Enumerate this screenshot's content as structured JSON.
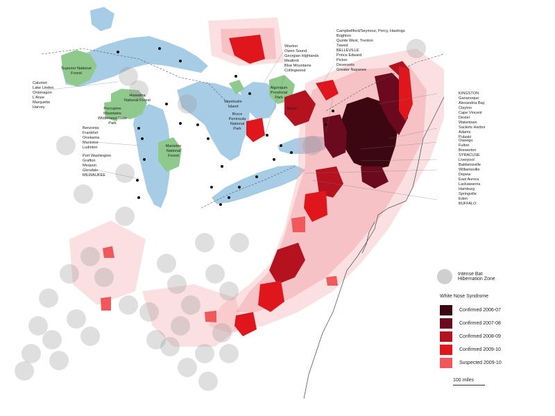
{
  "legend": {
    "hibernation_label_1": "Intense Bat",
    "hibernation_label_2": "Hibernation Zone",
    "wns_title": "White Nose Syndrome",
    "classes": [
      {
        "label": "Confirmed 2006-07",
        "color": "#3d0712"
      },
      {
        "label": "Confirmed 2007-08",
        "color": "#6b0a1e"
      },
      {
        "label": "Confirmed 2008-09",
        "color": "#b51220"
      },
      {
        "label": "Confirmed 2009-10",
        "color": "#e0161d"
      },
      {
        "label": "Suspected 2009-10",
        "color": "#f0585c"
      }
    ]
  },
  "scale_label": "100 miles",
  "places": {
    "west": [
      "Calumet",
      "Lake Linden",
      "Ontonagon",
      "L'Anse",
      "Marquette",
      "Harvey"
    ],
    "michigan_west": [
      "Benzonia",
      "Frankfort",
      "Onekama",
      "Manistee",
      "Ludinton"
    ],
    "wisconsin": [
      "Port Washington",
      "Grafton",
      "Mequon",
      "Glendale",
      "MILWAUKEE"
    ],
    "ontario": [
      "Wiarton",
      "Owen Sound",
      "Georgian Highlands",
      "Meaford",
      "Blue Mountains",
      "Collingwood"
    ],
    "ontario_east": [
      "Campbellford/Seymour, Percy, Hastings",
      "Brighton",
      "Quinte West, Trenton",
      "Tweed",
      "BELLEVILLE",
      "Prince Edward",
      "Picton",
      "Deseronto",
      "Greater Napanee"
    ],
    "ny_north": [
      "KINGSTON",
      "Gananoque",
      "Alexandria Bay",
      "Clayton",
      "Cape Vincent",
      "Dexter",
      "Watertown",
      "Sackets Harbor",
      "Adams",
      "Pulaski"
    ],
    "ny_mid": [
      "Oswego",
      "Fulton",
      "Brewerton",
      "SYRACUSE",
      "Liverpool",
      "Baldwinsville"
    ],
    "ny_west": [
      "Williamsville",
      "Depew",
      "East Aurora",
      "Lackawanna",
      "Hamburg",
      "Springville",
      "Eden",
      "BUFFALO"
    ]
  },
  "parks": {
    "superior": "Superior National Forest",
    "hiawatha": "Hiawatha National Forest",
    "porcupine": "Porcupine Mountains Wilderness State Park",
    "manistee": "Manistee National Forest",
    "manitoulin": "Manitoulin Island",
    "bruce": "Bruce Peninsula National Park",
    "algonquin": "Algonquin Provincial Park",
    "barrie": "Barrie"
  }
}
